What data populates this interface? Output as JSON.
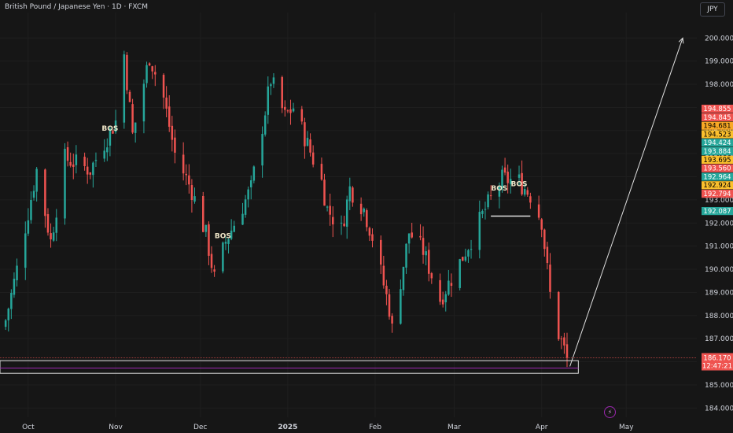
{
  "header": {
    "symbol_title": "British Pound / Japanese Yen · 1D · FXCM",
    "currency_button": "JPY"
  },
  "colors": {
    "background": "#161616",
    "up": "#26a69a",
    "down": "#ef5350",
    "grid": "#1f1f1f",
    "axis_text": "#d1d4dc",
    "current_price_line": "#ef5350",
    "zone_border": "#e0e0e0",
    "zone_mid_line": "#9c27b0",
    "projection_arrow": "#e0e0e0"
  },
  "chart_data": {
    "type": "candlestick",
    "y_axis": {
      "range": [
        183.6,
        201.1
      ],
      "ticks": [
        "200.000",
        "199.000",
        "198.000",
        "197.000",
        "196.000",
        "195.000",
        "194.000",
        "193.000",
        "192.000",
        "191.000",
        "190.000",
        "189.000",
        "188.000",
        "187.000",
        "186.000",
        "185.000",
        "184.000"
      ]
    },
    "x_axis": {
      "ticks": [
        {
          "label": "Oct",
          "date": "2024-10-01"
        },
        {
          "label": "Nov",
          "date": "2024-11-01"
        },
        {
          "label": "Dec",
          "date": "2024-12-01"
        },
        {
          "label": "2025",
          "date": "2025-01-01"
        },
        {
          "label": "Feb",
          "date": "2025-02-01"
        },
        {
          "label": "Mar",
          "date": "2025-03-01"
        },
        {
          "label": "Apr",
          "date": "2025-04-01"
        },
        {
          "label": "May",
          "date": "2025-05-01"
        }
      ],
      "range": [
        "2024-09-21",
        "2025-05-26"
      ]
    },
    "anchor_points": [
      {
        "date": "2024-09-23",
        "close": 187.8
      },
      {
        "date": "2024-09-27",
        "close": 190.0
      },
      {
        "date": "2024-10-04",
        "close": 194.3
      },
      {
        "date": "2024-10-09",
        "close": 191.2
      },
      {
        "date": "2024-10-14",
        "close": 194.8
      },
      {
        "date": "2024-10-23",
        "close": 194.3
      },
      {
        "date": "2024-11-01",
        "close": 196.4
      },
      {
        "date": "2024-11-04",
        "close": 199.3
      },
      {
        "date": "2024-11-07",
        "close": 195.8
      },
      {
        "date": "2024-11-13",
        "close": 199.2
      },
      {
        "date": "2024-11-18",
        "close": 197.4
      },
      {
        "date": "2024-11-22",
        "close": 195.0
      },
      {
        "date": "2024-11-28",
        "close": 193.4
      },
      {
        "date": "2024-12-03",
        "close": 191.5
      },
      {
        "date": "2024-12-06",
        "close": 189.6
      },
      {
        "date": "2024-12-10",
        "close": 191.2
      },
      {
        "date": "2024-12-19",
        "close": 193.5
      },
      {
        "date": "2024-12-26",
        "close": 198.2
      },
      {
        "date": "2024-12-31",
        "close": 196.6
      },
      {
        "date": "2025-01-03",
        "close": 197.0
      },
      {
        "date": "2025-01-08",
        "close": 195.4
      },
      {
        "date": "2025-01-13",
        "close": 193.8
      },
      {
        "date": "2025-01-15",
        "close": 192.6
      },
      {
        "date": "2025-01-20",
        "close": 191.7
      },
      {
        "date": "2025-01-23",
        "close": 193.5
      },
      {
        "date": "2025-01-28",
        "close": 192.6
      },
      {
        "date": "2025-01-31",
        "close": 191.4
      },
      {
        "date": "2025-02-06",
        "close": 188.3
      },
      {
        "date": "2025-02-07",
        "close": 187.4
      },
      {
        "date": "2025-02-13",
        "close": 191.6
      },
      {
        "date": "2025-02-18",
        "close": 190.8
      },
      {
        "date": "2025-02-24",
        "close": 188.7
      },
      {
        "date": "2025-03-03",
        "close": 190.3
      },
      {
        "date": "2025-03-07",
        "close": 191.3
      },
      {
        "date": "2025-03-12",
        "close": 192.6
      },
      {
        "date": "2025-03-18",
        "close": 193.9
      },
      {
        "date": "2025-03-24",
        "close": 193.8
      },
      {
        "date": "2025-03-28",
        "close": 193.2
      },
      {
        "date": "2025-04-01",
        "close": 192.1
      },
      {
        "date": "2025-04-04",
        "close": 188.9
      },
      {
        "date": "2025-04-07",
        "close": 187.2
      },
      {
        "date": "2025-04-10",
        "close": 186.17
      }
    ],
    "annotations": [
      {
        "type": "label",
        "text": "BOS",
        "date": "2024-10-30",
        "price": 196.0
      },
      {
        "type": "label",
        "text": "BOS",
        "date": "2024-12-09",
        "price": 191.35
      },
      {
        "type": "label",
        "text": "BOS",
        "date": "2025-03-17",
        "price": 193.4
      },
      {
        "type": "label",
        "text": "BOS",
        "date": "2025-03-24",
        "price": 193.6
      },
      {
        "type": "horizontal_line",
        "date_from": "2025-03-14",
        "date_to": "2025-03-28",
        "price": 192.3
      },
      {
        "type": "rectangle",
        "date_from": "2024-09-21",
        "date_to": "2025-04-14",
        "price_top": 186.05,
        "price_bottom": 185.5
      },
      {
        "type": "horizontal_line",
        "date_from": "2024-09-21",
        "date_to": "2025-04-14",
        "price": 185.73,
        "color": "purple"
      },
      {
        "type": "arrow",
        "from_date": "2025-04-11",
        "from_price": 185.8,
        "to_date": "2025-05-21",
        "to_price": 200.0
      }
    ],
    "price_tags": [
      {
        "value": "194.855",
        "bg": "#ef5350",
        "fg": "#ffffff"
      },
      {
        "value": "194.845",
        "bg": "#ef5350",
        "fg": "#ffffff"
      },
      {
        "value": "194.681",
        "bg": "#f9a825",
        "fg": "#000000"
      },
      {
        "value": "194.523",
        "bg": "#fbc02d",
        "fg": "#000000"
      },
      {
        "value": "194.424",
        "bg": "#26a69a",
        "fg": "#ffffff"
      },
      {
        "value": "193.884",
        "bg": "#26a69a",
        "fg": "#ffffff"
      },
      {
        "value": "193.695",
        "bg": "#fbc02d",
        "fg": "#000000"
      },
      {
        "value": "193.560",
        "bg": "#ef5350",
        "fg": "#ffffff"
      },
      {
        "value": "192.964",
        "bg": "#26a69a",
        "fg": "#ffffff"
      },
      {
        "value": "192.924",
        "bg": "#fbc02d",
        "fg": "#000000"
      },
      {
        "value": "192.794",
        "bg": "#ef5350",
        "fg": "#ffffff"
      },
      {
        "value": "192.087",
        "bg": "#26a69a",
        "fg": "#ffffff"
      }
    ],
    "current_price": {
      "value": "186.170",
      "countdown": "12:47:21",
      "bg": "#ef5350"
    }
  }
}
